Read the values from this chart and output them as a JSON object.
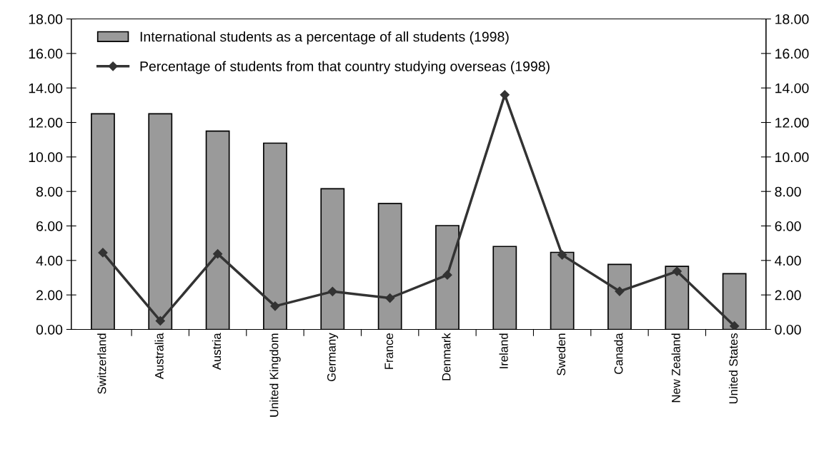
{
  "chart_data": {
    "type": "bar",
    "categories": [
      "Switzerland",
      "Australia",
      "Austria",
      "United Kingdom",
      "Germany",
      "France",
      "Denmark",
      "Ireland",
      "Sweden",
      "Canada",
      "New Zealand",
      "United States"
    ],
    "series": [
      {
        "name": "International students as a percentage of all students (1998)",
        "color": "#9a9a9a",
        "values": [
          12.5,
          12.5,
          11.5,
          10.8,
          8.16,
          7.3,
          6.02,
          4.81,
          4.47,
          3.77,
          3.66,
          3.23
        ]
      },
      {
        "name": "Percentage of students from that country studying overseas (1998)",
        "type": "line",
        "axis": "y2",
        "color": "#333333",
        "values": [
          4.45,
          0.5,
          4.38,
          1.35,
          2.2,
          1.82,
          3.16,
          13.6,
          4.32,
          2.21,
          3.37,
          0.2
        ]
      }
    ],
    "ylim": [
      0,
      18
    ],
    "yticks": [
      {
        "value": 0,
        "label": "0.00"
      },
      {
        "value": 2,
        "label": "2.00"
      },
      {
        "value": 4,
        "label": "4.00"
      },
      {
        "value": 6,
        "label": "6.00"
      },
      {
        "value": 8,
        "label": "8.00"
      },
      {
        "value": 10,
        "label": "10.00"
      },
      {
        "value": 12,
        "label": "12.00"
      },
      {
        "value": 14,
        "label": "14.00"
      },
      {
        "value": 16,
        "label": "16.00"
      },
      {
        "value": 18,
        "label": "18.00"
      }
    ],
    "y2lim": [
      0,
      18
    ],
    "y2ticks": [
      {
        "value": 0,
        "label": "0.00"
      },
      {
        "value": 2,
        "label": "2.00"
      },
      {
        "value": 4,
        "label": "4.00"
      },
      {
        "value": 6,
        "label": "6.00"
      },
      {
        "value": 8,
        "label": "8.00"
      },
      {
        "value": 10,
        "label": "10.00"
      },
      {
        "value": 12,
        "label": "12.00"
      },
      {
        "value": 14,
        "label": "14.00"
      },
      {
        "value": 16,
        "label": "16.00"
      },
      {
        "value": 18,
        "label": "18.00"
      }
    ],
    "legend": "top left",
    "marker": "diamond",
    "grid": false
  }
}
